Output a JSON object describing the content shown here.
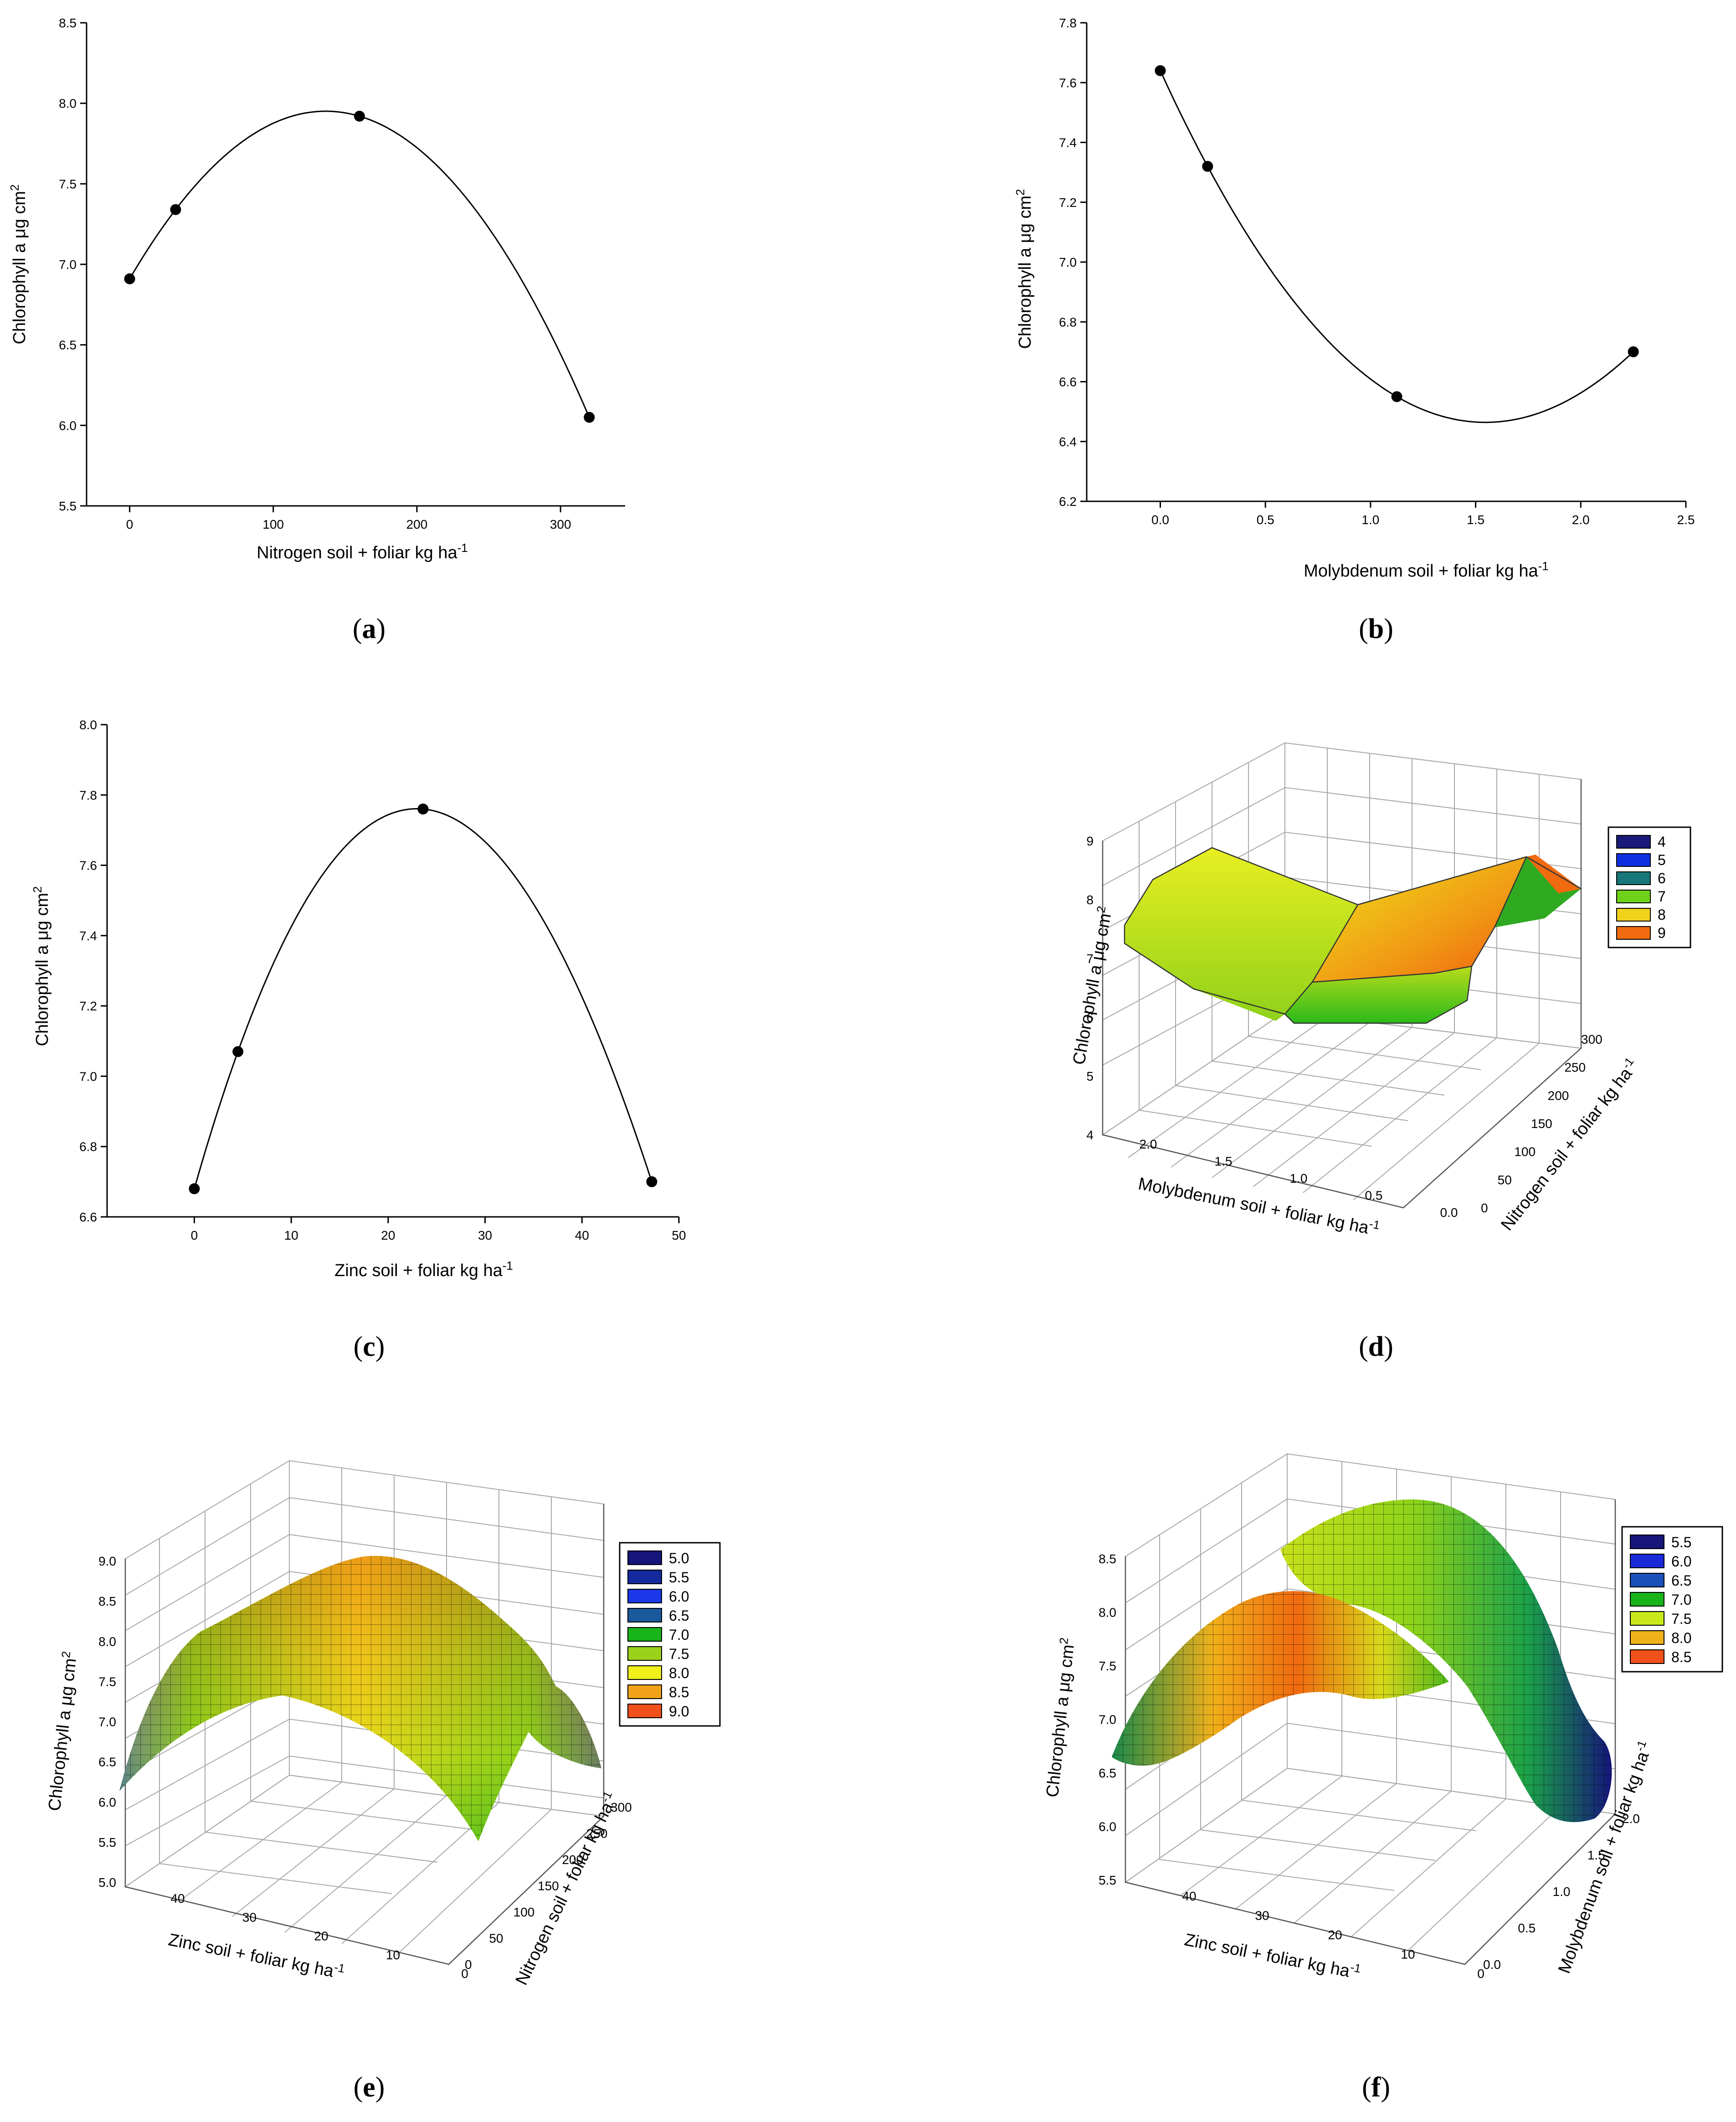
{
  "chart_data": [
    {
      "id": "a",
      "type": "line",
      "panel_label": "a",
      "xlabel": "Nitrogen soil + foliar kg ha",
      "xlabel_sup": "-1",
      "ylabel": "Chlorophyll a μg cm",
      "ylabel_sup": "2",
      "xlim": [
        -30,
        345
      ],
      "ylim": [
        5.5,
        8.5
      ],
      "xticks": [
        0,
        100,
        200,
        300
      ],
      "yticks": [
        5.5,
        6.0,
        6.5,
        7.0,
        7.5,
        8.0,
        8.5
      ],
      "ytick_labels": [
        "5.5",
        "6.0",
        "6.5",
        "7.0",
        "7.5",
        "8.0",
        "8.5"
      ],
      "points": {
        "x": [
          0,
          32,
          160,
          320
        ],
        "y": [
          6.91,
          7.34,
          7.92,
          6.05
        ]
      },
      "fit": "cubic"
    },
    {
      "id": "b",
      "type": "line",
      "panel_label": "b",
      "xlabel": "Molybdenum  soil + foliar kg ha",
      "xlabel_sup": "-1",
      "ylabel": "Chlorophyll a μg cm",
      "ylabel_sup": "2",
      "xlim": [
        -0.35,
        2.5
      ],
      "ylim": [
        6.2,
        7.8
      ],
      "xticks": [
        0.0,
        0.5,
        1.0,
        1.5,
        2.0,
        2.5
      ],
      "xtick_labels": [
        "0.0",
        "0.5",
        "1.0",
        "1.5",
        "2.0",
        "2.5"
      ],
      "yticks": [
        6.2,
        6.4,
        6.6,
        6.8,
        7.0,
        7.2,
        7.4,
        7.6,
        7.8
      ],
      "ytick_labels": [
        "6.2",
        "6.4",
        "6.6",
        "6.8",
        "7.0",
        "7.2",
        "7.4",
        "7.6",
        "7.8"
      ],
      "points": {
        "x": [
          0.0,
          0.225,
          1.125,
          2.25
        ],
        "y": [
          7.64,
          7.32,
          6.55,
          6.7
        ]
      },
      "fit": "cubic"
    },
    {
      "id": "c",
      "type": "line",
      "panel_label": "c",
      "xlabel": "Zinc  soil + foliar kg ha",
      "xlabel_sup": "-1",
      "ylabel": "Chlorophyll a μg cm",
      "ylabel_sup": "2",
      "xlim": [
        -9,
        50
      ],
      "ylim": [
        6.6,
        8.0
      ],
      "xticks": [
        0,
        10,
        20,
        30,
        40,
        50
      ],
      "yticks": [
        6.6,
        6.8,
        7.0,
        7.2,
        7.4,
        7.6,
        7.8,
        8.0
      ],
      "ytick_labels": [
        "6.6",
        "6.8",
        "7.0",
        "7.2",
        "7.4",
        "7.6",
        "7.8",
        "8.0"
      ],
      "points": {
        "x": [
          0,
          4.5,
          23.6,
          47.2
        ],
        "y": [
          6.68,
          7.07,
          7.76,
          6.7
        ]
      },
      "fit": "cubic"
    },
    {
      "id": "d",
      "type": "surface3d",
      "panel_label": "d",
      "zlabel": "Chlorophyll a μg cm",
      "zlabel_sup": "2",
      "xlabel": "Molybdenum  soil + foliar kg ha",
      "xlabel_sup": "-1",
      "ylabel": "Nitrogen soil + foliar kg ha",
      "ylabel_sup": "-1",
      "zticks": [
        "4",
        "5",
        "6",
        "7",
        "8",
        "9"
      ],
      "xticks": [
        "2.0",
        "1.5",
        "1.0",
        "0.5",
        "0.0"
      ],
      "yticks": [
        "0",
        "50",
        "100",
        "150",
        "200",
        "250",
        "300"
      ],
      "legend": [
        {
          "label": "4",
          "color": "#1a1a7a"
        },
        {
          "label": "5",
          "color": "#1030e0"
        },
        {
          "label": "6",
          "color": "#17777a"
        },
        {
          "label": "7",
          "color": "#6fd11a"
        },
        {
          "label": "8",
          "color": "#f0d21a"
        },
        {
          "label": "9",
          "color": "#f06a10"
        }
      ]
    },
    {
      "id": "e",
      "type": "surface3d",
      "panel_label": "e",
      "zlabel": "Chlorophyll a μg cm",
      "zlabel_sup": "2",
      "xlabel": "Zinc  soil + foliar kg ha",
      "xlabel_sup": "-1",
      "ylabel": "Nitrogen soil + foliar kg ha",
      "ylabel_sup": "-1",
      "zticks": [
        "5.0",
        "5.5",
        "6.0",
        "6.5",
        "7.0",
        "7.5",
        "8.0",
        "8.5",
        "9.0"
      ],
      "xticks": [
        "40",
        "30",
        "20",
        "10",
        "0"
      ],
      "yticks": [
        "0",
        "50",
        "100",
        "150",
        "200",
        "250",
        "300"
      ],
      "legend": [
        {
          "label": "5.0",
          "color": "#15157a"
        },
        {
          "label": "5.5",
          "color": "#142a9e"
        },
        {
          "label": "6.0",
          "color": "#1a37e8"
        },
        {
          "label": "6.5",
          "color": "#1a5a9c"
        },
        {
          "label": "7.0",
          "color": "#19b31a"
        },
        {
          "label": "7.5",
          "color": "#9ad21a"
        },
        {
          "label": "8.0",
          "color": "#f0f01a"
        },
        {
          "label": "8.5",
          "color": "#f0a21a"
        },
        {
          "label": "9.0",
          "color": "#f0501a"
        }
      ]
    },
    {
      "id": "f",
      "type": "surface3d",
      "panel_label": "f",
      "zlabel": "Chlorophyll a μg cm",
      "zlabel_sup": "2",
      "xlabel": "Zinc  soil + foliar kg ha",
      "xlabel_sup": "-1",
      "ylabel": "Molybdenum  soil + foliar kg ha",
      "ylabel_sup": "-1",
      "zticks": [
        "5.5",
        "6.0",
        "6.5",
        "7.0",
        "7.5",
        "8.0",
        "8.5"
      ],
      "xticks": [
        "40",
        "30",
        "20",
        "10",
        "0"
      ],
      "yticks": [
        "0.0",
        "0.5",
        "1.0",
        "1.5",
        "2.0"
      ],
      "legend": [
        {
          "label": "5.5",
          "color": "#15157a"
        },
        {
          "label": "6.0",
          "color": "#1a2ad8"
        },
        {
          "label": "6.5",
          "color": "#1a50b8"
        },
        {
          "label": "7.0",
          "color": "#19b31a"
        },
        {
          "label": "7.5",
          "color": "#c8e81a"
        },
        {
          "label": "8.0",
          "color": "#f0b21a"
        },
        {
          "label": "8.5",
          "color": "#f0501a"
        }
      ]
    }
  ]
}
